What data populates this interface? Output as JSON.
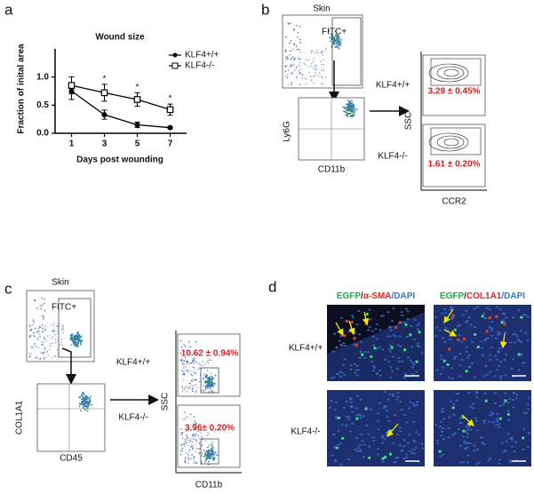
{
  "chart_data": {
    "type": "line",
    "title": "Wound size",
    "xlabel": "Days post wounding",
    "ylabel": "Fraction of inital area",
    "x": [
      1,
      3,
      5,
      7
    ],
    "xlim": [
      0,
      8
    ],
    "xticks": [
      1,
      3,
      5,
      7
    ],
    "ylim": [
      0,
      1.5
    ],
    "yticks": [
      {
        "value": 0,
        "label": "0.0"
      },
      {
        "value": 0.5,
        "label": "0.5"
      },
      {
        "value": 1,
        "label": "1.0"
      }
    ],
    "series": [
      {
        "name": "KLF4+/+",
        "color": "#000000",
        "marker": "circle",
        "values": [
          0.75,
          0.33,
          0.15,
          0.1
        ],
        "errors": [
          0.15,
          0.08,
          0.05,
          0.02
        ]
      },
      {
        "name": "KLF4-/-",
        "color": "#000000",
        "marker": "square",
        "values": [
          0.85,
          0.72,
          0.6,
          0.42
        ],
        "errors": [
          0.15,
          0.15,
          0.12,
          0.1
        ]
      }
    ],
    "annotations": [
      {
        "x": 3,
        "text": "*"
      },
      {
        "x": 5,
        "text": "*"
      },
      {
        "x": 7,
        "text": "*"
      }
    ],
    "legend": "upper right"
  },
  "panel_labels": [
    "a",
    "b",
    "c",
    "d"
  ],
  "panel_b": {
    "tissue": "Skin",
    "gate": "FITC+",
    "y_axis": "Ly6G",
    "x_axis": "CD11b",
    "ssc": "SSC",
    "right_x_axis": "CCR2",
    "rows": [
      {
        "label": "KLF4+/+",
        "percent": "3.29 ± 0.45%"
      },
      {
        "label": "KLF4-/-",
        "percent": "1.61 ± 0.20%"
      }
    ]
  },
  "panel_c": {
    "tissue": "Skin",
    "gate": "FITC+",
    "y_axis": "COL1A1",
    "x_axis": "CD45",
    "ssc": "SSC",
    "right_x_axis": "CD11b",
    "rows": [
      {
        "label": "KLF4+/+",
        "percent": "10.62 ± 0.94%"
      },
      {
        "label": "KLF4-/-",
        "percent": "3.96± 0.20%"
      }
    ]
  },
  "panel_d": {
    "headers": [
      [
        {
          "text": "EGFP",
          "color": "#21a84a"
        },
        {
          "text": "/",
          "color": "#333333"
        },
        {
          "text": "α-SMA",
          "color": "#e02424"
        },
        {
          "text": "/DAPI",
          "color": "#2f78d6"
        }
      ],
      [
        {
          "text": "EGFP",
          "color": "#21a84a"
        },
        {
          "text": "/",
          "color": "#333333"
        },
        {
          "text": "COL1A1",
          "color": "#e02424"
        },
        {
          "text": "/DAPI",
          "color": "#2f78d6"
        }
      ]
    ],
    "rows": [
      "KLF4+/+",
      "KLF4-/-"
    ]
  }
}
